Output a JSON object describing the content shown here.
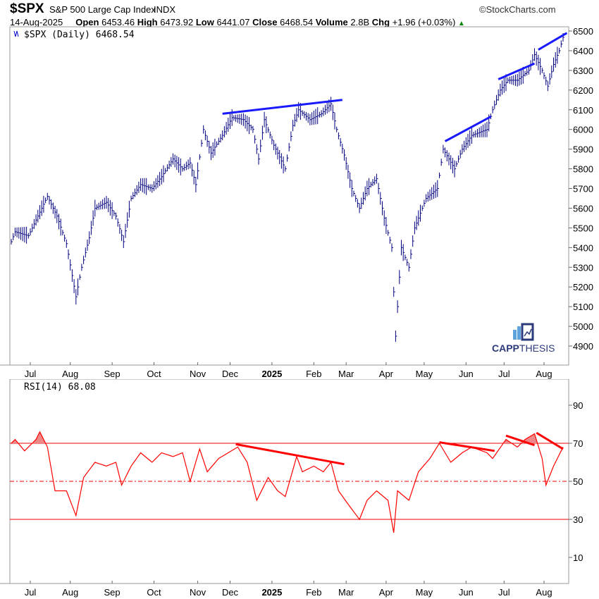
{
  "header": {
    "symbol": "$SPX",
    "name": "S&P 500 Large Cap Index",
    "exchange": "INDX",
    "brand": "©StockCharts.com",
    "date": "14-Aug-2025",
    "open_l": "Open",
    "open": "6453.46",
    "high_l": "High",
    "high": "6473.92",
    "low_l": "Low",
    "low": "6441.07",
    "close_l": "Close",
    "close": "6468.54",
    "vol_l": "Volume",
    "vol": "2.8B",
    "chg_l": "Chg",
    "chg": "+1.96 (+0.03%)"
  },
  "logo": {
    "text1": "CAPP",
    "text2": "THESIS"
  },
  "colors": {
    "price": "#00007f",
    "trend": "#1a1aff",
    "rsi": "#ff0000"
  },
  "chart_data": [
    {
      "type": "line",
      "title": "$SPX (Daily) 6468.54",
      "ylim": [
        4800,
        6550
      ],
      "yticks": [
        4900,
        5000,
        5100,
        5200,
        5300,
        5400,
        5500,
        5600,
        5700,
        5800,
        5900,
        6000,
        6100,
        6200,
        6300,
        6400,
        6500
      ],
      "x_label_sessions": [
        10,
        31,
        53,
        75,
        98,
        115,
        137,
        159,
        176,
        197,
        217,
        239,
        259,
        280
      ],
      "x_labels": [
        "Jul",
        "Aug",
        "Sep",
        "Oct",
        "Nov",
        "Dec",
        "2025",
        "Feb",
        "Mar",
        "Apr",
        "May",
        "Jun",
        "Jul",
        "Aug"
      ],
      "points": [
        [
          0,
          5430
        ],
        [
          2,
          5480
        ],
        [
          9,
          5460
        ],
        [
          16,
          5600
        ],
        [
          19,
          5660
        ],
        [
          24,
          5560
        ],
        [
          29,
          5420
        ],
        [
          34,
          5150
        ],
        [
          37,
          5300
        ],
        [
          41,
          5450
        ],
        [
          44,
          5600
        ],
        [
          50,
          5630
        ],
        [
          55,
          5560
        ],
        [
          59,
          5430
        ],
        [
          63,
          5650
        ],
        [
          68,
          5720
        ],
        [
          74,
          5700
        ],
        [
          79,
          5760
        ],
        [
          85,
          5850
        ],
        [
          90,
          5800
        ],
        [
          94,
          5830
        ],
        [
          97,
          5720
        ],
        [
          101,
          6000
        ],
        [
          105,
          5880
        ],
        [
          111,
          5970
        ],
        [
          116,
          6060
        ],
        [
          122,
          6050
        ],
        [
          127,
          6000
        ],
        [
          130,
          5850
        ],
        [
          133,
          6050
        ],
        [
          138,
          5920
        ],
        [
          144,
          5800
        ],
        [
          148,
          6020
        ],
        [
          151,
          6100
        ],
        [
          157,
          6050
        ],
        [
          163,
          6080
        ],
        [
          168,
          6130
        ],
        [
          171,
          6000
        ],
        [
          175,
          5870
        ],
        [
          179,
          5700
        ],
        [
          183,
          5600
        ],
        [
          187,
          5700
        ],
        [
          192,
          5750
        ],
        [
          196,
          5550
        ],
        [
          200,
          5400
        ],
        [
          202,
          4950
        ],
        [
          205,
          5400
        ],
        [
          209,
          5300
        ],
        [
          212,
          5500
        ],
        [
          218,
          5650
        ],
        [
          224,
          5700
        ],
        [
          227,
          5900
        ],
        [
          233,
          5800
        ],
        [
          237,
          5900
        ],
        [
          242,
          5970
        ],
        [
          250,
          6000
        ],
        [
          253,
          6100
        ],
        [
          257,
          6200
        ],
        [
          261,
          6250
        ],
        [
          266,
          6250
        ],
        [
          272,
          6300
        ],
        [
          275,
          6380
        ],
        [
          279,
          6300
        ],
        [
          282,
          6220
        ],
        [
          285,
          6330
        ],
        [
          288,
          6400
        ],
        [
          290,
          6468
        ]
      ],
      "trendlines": [
        [
          [
            111,
            6080
          ],
          [
            174,
            6150
          ]
        ],
        [
          [
            228,
            5940
          ],
          [
            252,
            6065
          ]
        ],
        [
          [
            256,
            6255
          ],
          [
            275,
            6335
          ]
        ],
        [
          [
            277,
            6405
          ],
          [
            292,
            6490
          ]
        ]
      ]
    },
    {
      "type": "line",
      "title": "RSI(14) 68.08",
      "ylim": [
        0,
        100
      ],
      "yticks": [
        10,
        30,
        50,
        70,
        90
      ],
      "levels": [
        30,
        50,
        70
      ],
      "points": [
        [
          0,
          70
        ],
        [
          2,
          72
        ],
        [
          7,
          66
        ],
        [
          13,
          72
        ],
        [
          15,
          76
        ],
        [
          19,
          68
        ],
        [
          23,
          45
        ],
        [
          29,
          45
        ],
        [
          34,
          32
        ],
        [
          38,
          52
        ],
        [
          44,
          60
        ],
        [
          50,
          58
        ],
        [
          55,
          60
        ],
        [
          58,
          48
        ],
        [
          63,
          58
        ],
        [
          68,
          65
        ],
        [
          74,
          60
        ],
        [
          79,
          65
        ],
        [
          85,
          63
        ],
        [
          90,
          65
        ],
        [
          94,
          50
        ],
        [
          99,
          67
        ],
        [
          103,
          55
        ],
        [
          109,
          62
        ],
        [
          114,
          65
        ],
        [
          119,
          68
        ],
        [
          124,
          60
        ],
        [
          129,
          40
        ],
        [
          135,
          52
        ],
        [
          140,
          45
        ],
        [
          144,
          42
        ],
        [
          150,
          63
        ],
        [
          153,
          55
        ],
        [
          159,
          58
        ],
        [
          164,
          55
        ],
        [
          168,
          60
        ],
        [
          172,
          45
        ],
        [
          177,
          38
        ],
        [
          183,
          30
        ],
        [
          187,
          40
        ],
        [
          192,
          45
        ],
        [
          198,
          40
        ],
        [
          201,
          23
        ],
        [
          203,
          45
        ],
        [
          209,
          40
        ],
        [
          214,
          55
        ],
        [
          220,
          62
        ],
        [
          225,
          70
        ],
        [
          231,
          60
        ],
        [
          237,
          65
        ],
        [
          242,
          68
        ],
        [
          250,
          65
        ],
        [
          253,
          62
        ],
        [
          260,
          72
        ],
        [
          266,
          68
        ],
        [
          270,
          72
        ],
        [
          275,
          75
        ],
        [
          279,
          62
        ],
        [
          281,
          48
        ],
        [
          285,
          58
        ],
        [
          290,
          68
        ]
      ],
      "trendlines": [
        [
          [
            118,
            69.5
          ],
          [
            175,
            59
          ]
        ],
        [
          [
            225,
            70.5
          ],
          [
            254,
            66
          ]
        ],
        [
          [
            260,
            74
          ],
          [
            275,
            69
          ]
        ],
        [
          [
            276,
            75.5
          ],
          [
            290,
            67
          ]
        ]
      ]
    }
  ]
}
